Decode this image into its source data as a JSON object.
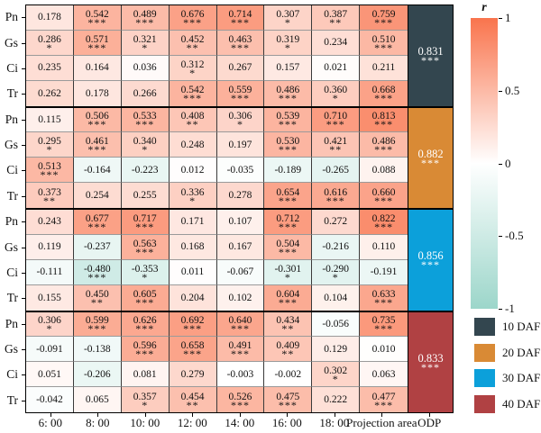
{
  "colorbar": {
    "title": "r",
    "tick_labels": [
      "1",
      "0.5",
      "0",
      "-0.5",
      "-1"
    ],
    "max_color": "#F9744D",
    "mid_color": "#FFFFFF",
    "min_color": "#9CD6CA"
  },
  "legend": {
    "items": [
      {
        "label": "10 DAF",
        "color": "#33464F"
      },
      {
        "label": "20 DAF",
        "color": "#D98A35"
      },
      {
        "label": "30 DAF",
        "color": "#0CA0DA"
      },
      {
        "label": "40 DAF",
        "color": "#B04143"
      }
    ]
  },
  "chart_data": {
    "type": "heatmap",
    "value_range": [
      -1,
      1
    ],
    "x_tick_labels": [
      "6: 00",
      "8: 00",
      "10: 00",
      "12: 00",
      "14: 00",
      "16: 00",
      "18: 00",
      "Projection area"
    ],
    "odp_column_label": "ODP",
    "row_tick_labels": [
      "Pn",
      "Gs",
      "Ci",
      "Tr"
    ],
    "groups": [
      {
        "name": "10 DAF",
        "color": "#33464F",
        "odp": {
          "value": "0.831",
          "sig": "***"
        },
        "rows": [
          {
            "label": "Pn",
            "cells": [
              {
                "v": "0.178",
                "s": ""
              },
              {
                "v": "0.542",
                "s": "***"
              },
              {
                "v": "0.489",
                "s": "***"
              },
              {
                "v": "0.676",
                "s": "***"
              },
              {
                "v": "0.714",
                "s": "***"
              },
              {
                "v": "0.307",
                "s": "*"
              },
              {
                "v": "0.387",
                "s": "**"
              },
              {
                "v": "0.759",
                "s": "***"
              }
            ]
          },
          {
            "label": "Gs",
            "cells": [
              {
                "v": "0.286",
                "s": "*"
              },
              {
                "v": "0.571",
                "s": "***"
              },
              {
                "v": "0.321",
                "s": "*"
              },
              {
                "v": "0.452",
                "s": "**"
              },
              {
                "v": "0.463",
                "s": "***"
              },
              {
                "v": "0.319",
                "s": "*"
              },
              {
                "v": "0.234",
                "s": ""
              },
              {
                "v": "0.510",
                "s": "***"
              }
            ]
          },
          {
            "label": "Ci",
            "cells": [
              {
                "v": "0.235",
                "s": ""
              },
              {
                "v": "0.164",
                "s": ""
              },
              {
                "v": "0.036",
                "s": ""
              },
              {
                "v": "0.312",
                "s": "*"
              },
              {
                "v": "0.267",
                "s": ""
              },
              {
                "v": "0.157",
                "s": ""
              },
              {
                "v": "0.021",
                "s": ""
              },
              {
                "v": "0.211",
                "s": ""
              }
            ]
          },
          {
            "label": "Tr",
            "cells": [
              {
                "v": "0.262",
                "s": ""
              },
              {
                "v": "0.178",
                "s": ""
              },
              {
                "v": "0.266",
                "s": ""
              },
              {
                "v": "0.542",
                "s": "***"
              },
              {
                "v": "0.559",
                "s": "***"
              },
              {
                "v": "0.486",
                "s": "***"
              },
              {
                "v": "0.360",
                "s": "*"
              },
              {
                "v": "0.668",
                "s": "***"
              }
            ]
          }
        ]
      },
      {
        "name": "20 DAF",
        "color": "#D98A35",
        "odp": {
          "value": "0.882",
          "sig": "***"
        },
        "rows": [
          {
            "label": "Pn",
            "cells": [
              {
                "v": "0.115",
                "s": ""
              },
              {
                "v": "0.506",
                "s": "***"
              },
              {
                "v": "0.533",
                "s": "***"
              },
              {
                "v": "0.408",
                "s": "**"
              },
              {
                "v": "0.306",
                "s": "*"
              },
              {
                "v": "0.539",
                "s": "***"
              },
              {
                "v": "0.710",
                "s": "***"
              },
              {
                "v": "0.813",
                "s": "***"
              }
            ]
          },
          {
            "label": "Gs",
            "cells": [
              {
                "v": "0.295",
                "s": "*"
              },
              {
                "v": "0.461",
                "s": "***"
              },
              {
                "v": "0.340",
                "s": "*"
              },
              {
                "v": "0.248",
                "s": ""
              },
              {
                "v": "0.197",
                "s": ""
              },
              {
                "v": "0.530",
                "s": "***"
              },
              {
                "v": "0.421",
                "s": "**"
              },
              {
                "v": "0.486",
                "s": "***"
              }
            ]
          },
          {
            "label": "Ci",
            "cells": [
              {
                "v": "0.513",
                "s": "***"
              },
              {
                "v": "-0.164",
                "s": ""
              },
              {
                "v": "-0.223",
                "s": ""
              },
              {
                "v": "0.012",
                "s": ""
              },
              {
                "v": "-0.035",
                "s": ""
              },
              {
                "v": "-0.189",
                "s": ""
              },
              {
                "v": "-0.265",
                "s": ""
              },
              {
                "v": "0.088",
                "s": ""
              }
            ]
          },
          {
            "label": "Tr",
            "cells": [
              {
                "v": "0.373",
                "s": "**"
              },
              {
                "v": "0.254",
                "s": ""
              },
              {
                "v": "0.255",
                "s": ""
              },
              {
                "v": "0.336",
                "s": "*"
              },
              {
                "v": "0.278",
                "s": ""
              },
              {
                "v": "0.654",
                "s": "***"
              },
              {
                "v": "0.616",
                "s": "***"
              },
              {
                "v": "0.660",
                "s": "***"
              }
            ]
          }
        ]
      },
      {
        "name": "30 DAF",
        "color": "#0CA0DA",
        "odp": {
          "value": "0.856",
          "sig": "***"
        },
        "rows": [
          {
            "label": "Pn",
            "cells": [
              {
                "v": "0.243",
                "s": ""
              },
              {
                "v": "0.677",
                "s": "***"
              },
              {
                "v": "0.717",
                "s": "***"
              },
              {
                "v": "0.171",
                "s": ""
              },
              {
                "v": "0.107",
                "s": ""
              },
              {
                "v": "0.712",
                "s": "***"
              },
              {
                "v": "0.272",
                "s": ""
              },
              {
                "v": "0.822",
                "s": "***"
              }
            ]
          },
          {
            "label": "Gs",
            "cells": [
              {
                "v": "0.119",
                "s": ""
              },
              {
                "v": "-0.237",
                "s": ""
              },
              {
                "v": "0.563",
                "s": "***"
              },
              {
                "v": "0.168",
                "s": ""
              },
              {
                "v": "0.167",
                "s": ""
              },
              {
                "v": "0.504",
                "s": "***"
              },
              {
                "v": "-0.216",
                "s": ""
              },
              {
                "v": "0.110",
                "s": ""
              }
            ]
          },
          {
            "label": "Ci",
            "cells": [
              {
                "v": "-0.111",
                "s": ""
              },
              {
                "v": "-0.480",
                "s": "***"
              },
              {
                "v": "-0.353",
                "s": "*"
              },
              {
                "v": "0.011",
                "s": ""
              },
              {
                "v": "-0.067",
                "s": ""
              },
              {
                "v": "-0.301",
                "s": "*"
              },
              {
                "v": "-0.290",
                "s": "*"
              },
              {
                "v": "-0.191",
                "s": ""
              }
            ]
          },
          {
            "label": "Tr",
            "cells": [
              {
                "v": "0.155",
                "s": ""
              },
              {
                "v": "0.450",
                "s": "**"
              },
              {
                "v": "0.605",
                "s": "***"
              },
              {
                "v": "0.204",
                "s": ""
              },
              {
                "v": "0.102",
                "s": ""
              },
              {
                "v": "0.604",
                "s": "***"
              },
              {
                "v": "0.104",
                "s": ""
              },
              {
                "v": "0.633",
                "s": "***"
              }
            ]
          }
        ]
      },
      {
        "name": "40 DAF",
        "color": "#B04143",
        "odp": {
          "value": "0.833",
          "sig": "***"
        },
        "rows": [
          {
            "label": "Pn",
            "cells": [
              {
                "v": "0.306",
                "s": "*"
              },
              {
                "v": "0.599",
                "s": "***"
              },
              {
                "v": "0.626",
                "s": "***"
              },
              {
                "v": "0.692",
                "s": "***"
              },
              {
                "v": "0.640",
                "s": "***"
              },
              {
                "v": "0.434",
                "s": "**"
              },
              {
                "v": "-0.056",
                "s": ""
              },
              {
                "v": "0.735",
                "s": "***"
              }
            ]
          },
          {
            "label": "Gs",
            "cells": [
              {
                "v": "-0.091",
                "s": ""
              },
              {
                "v": "-0.138",
                "s": ""
              },
              {
                "v": "0.596",
                "s": "***"
              },
              {
                "v": "0.658",
                "s": "***"
              },
              {
                "v": "0.491",
                "s": "***"
              },
              {
                "v": "0.409",
                "s": "**"
              },
              {
                "v": "0.129",
                "s": ""
              },
              {
                "v": "0.010",
                "s": ""
              }
            ]
          },
          {
            "label": "Ci",
            "cells": [
              {
                "v": "0.051",
                "s": ""
              },
              {
                "v": "-0.206",
                "s": ""
              },
              {
                "v": "0.081",
                "s": ""
              },
              {
                "v": "0.279",
                "s": ""
              },
              {
                "v": "-0.003",
                "s": ""
              },
              {
                "v": "-0.002",
                "s": ""
              },
              {
                "v": "0.302",
                "s": "*"
              },
              {
                "v": "0.063",
                "s": ""
              }
            ]
          },
          {
            "label": "Tr",
            "cells": [
              {
                "v": "-0.042",
                "s": ""
              },
              {
                "v": "0.065",
                "s": ""
              },
              {
                "v": "0.357",
                "s": "*"
              },
              {
                "v": "0.454",
                "s": "**"
              },
              {
                "v": "0.526",
                "s": "***"
              },
              {
                "v": "0.475",
                "s": "***"
              },
              {
                "v": "0.222",
                "s": ""
              },
              {
                "v": "0.477",
                "s": "***"
              }
            ]
          }
        ]
      }
    ]
  }
}
